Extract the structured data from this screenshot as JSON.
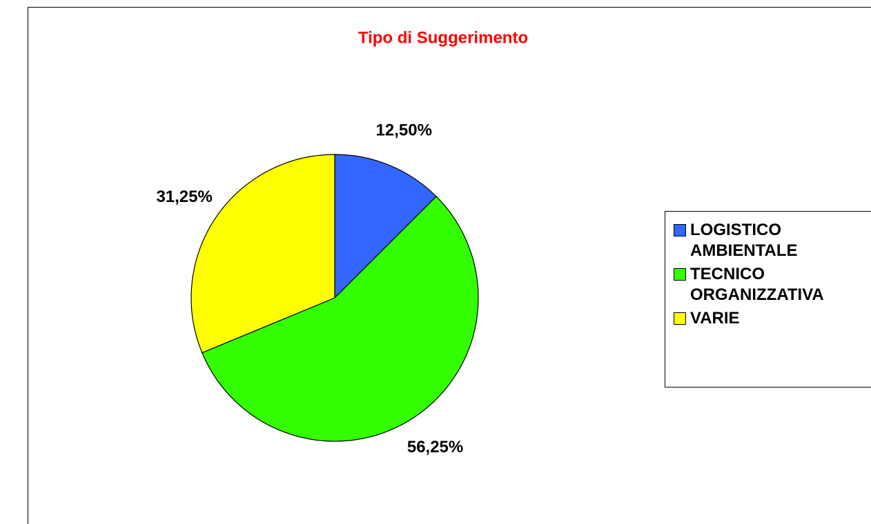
{
  "chart_data": {
    "type": "pie",
    "title": "Tipo di Suggerimento",
    "categories": [
      "LOGISTICO AMBIENTALE",
      "TECNICO ORGANIZZATIVA",
      "VARIE"
    ],
    "values": [
      12.5,
      56.25,
      31.25
    ],
    "value_labels": [
      "12,50%",
      "56,25%",
      "31,25%"
    ],
    "colors": [
      "#3366ff",
      "#33ff00",
      "#ffff00"
    ],
    "legend": "right"
  }
}
